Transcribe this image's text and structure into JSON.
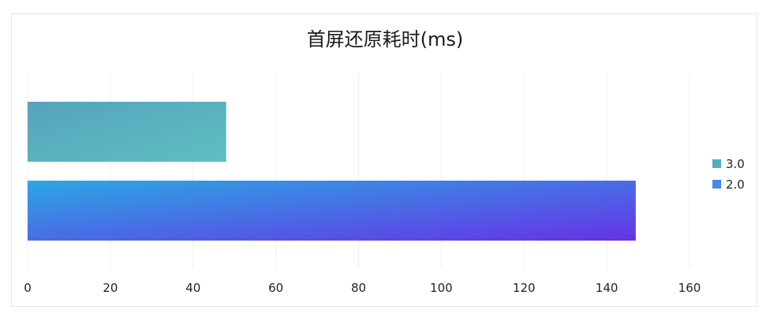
{
  "chart_data": {
    "type": "bar",
    "orientation": "horizontal",
    "title": "首屏还原耗时(ms)",
    "xlabel": "",
    "ylabel": "",
    "xlim": [
      0,
      160
    ],
    "xticks": [
      "0",
      "20",
      "40",
      "60",
      "80",
      "100",
      "120",
      "140",
      "160"
    ],
    "grid": true,
    "legend_position": "right",
    "series": [
      {
        "name": "3.0",
        "value": 48,
        "color_start": "#55a3bd",
        "color_end": "#5ebfc1",
        "legend_color": "#53adbc"
      },
      {
        "name": "2.0",
        "value": 147,
        "color_start": "#2ba7e4",
        "color_end": "#6632e6",
        "legend_color": "#4a86e8"
      }
    ]
  }
}
